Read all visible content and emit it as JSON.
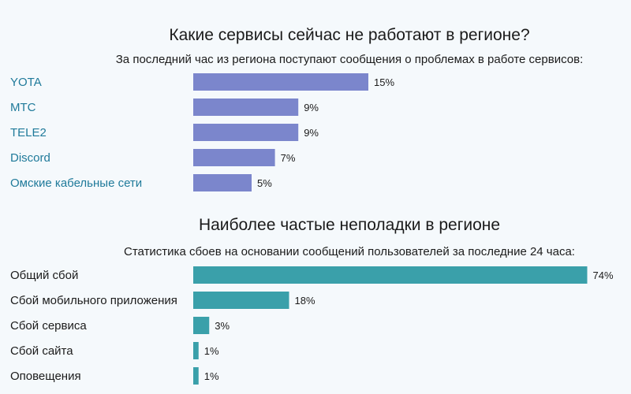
{
  "chart_data": [
    {
      "type": "bar",
      "orientation": "horizontal",
      "title": "Какие сервисы сейчас не работают в регионе?",
      "subtitle": "За последний час из региона поступают сообщения о проблемах в работе сервисов:",
      "categories": [
        "YOTA",
        "МТС",
        "TELE2",
        "Discord",
        "Омские кабельные сети"
      ],
      "values": [
        15,
        9,
        9,
        7,
        5
      ],
      "value_labels": [
        "15%",
        "9%",
        "9%",
        "7%",
        "5%"
      ],
      "unit": "%",
      "color": "#7b86cc",
      "label_color": "#1f7a9a",
      "labels_are_links": true,
      "grid": false
    },
    {
      "type": "bar",
      "orientation": "horizontal",
      "title": "Наиболее частые неполадки в регионе",
      "subtitle": "Статистика сбоев на основании сообщений пользователей за последние 24 часа:",
      "categories": [
        "Общий сбой",
        "Сбой мобильного приложения",
        "Сбой сервиса",
        "Сбой сайта",
        "Оповещения"
      ],
      "values": [
        74,
        18,
        3,
        1,
        1
      ],
      "value_labels": [
        "74%",
        "18%",
        "3%",
        "1%",
        "1%"
      ],
      "unit": "%",
      "color": "#3aa0aa",
      "label_color": "#1b1b1b",
      "labels_are_links": false,
      "grid": false
    }
  ]
}
